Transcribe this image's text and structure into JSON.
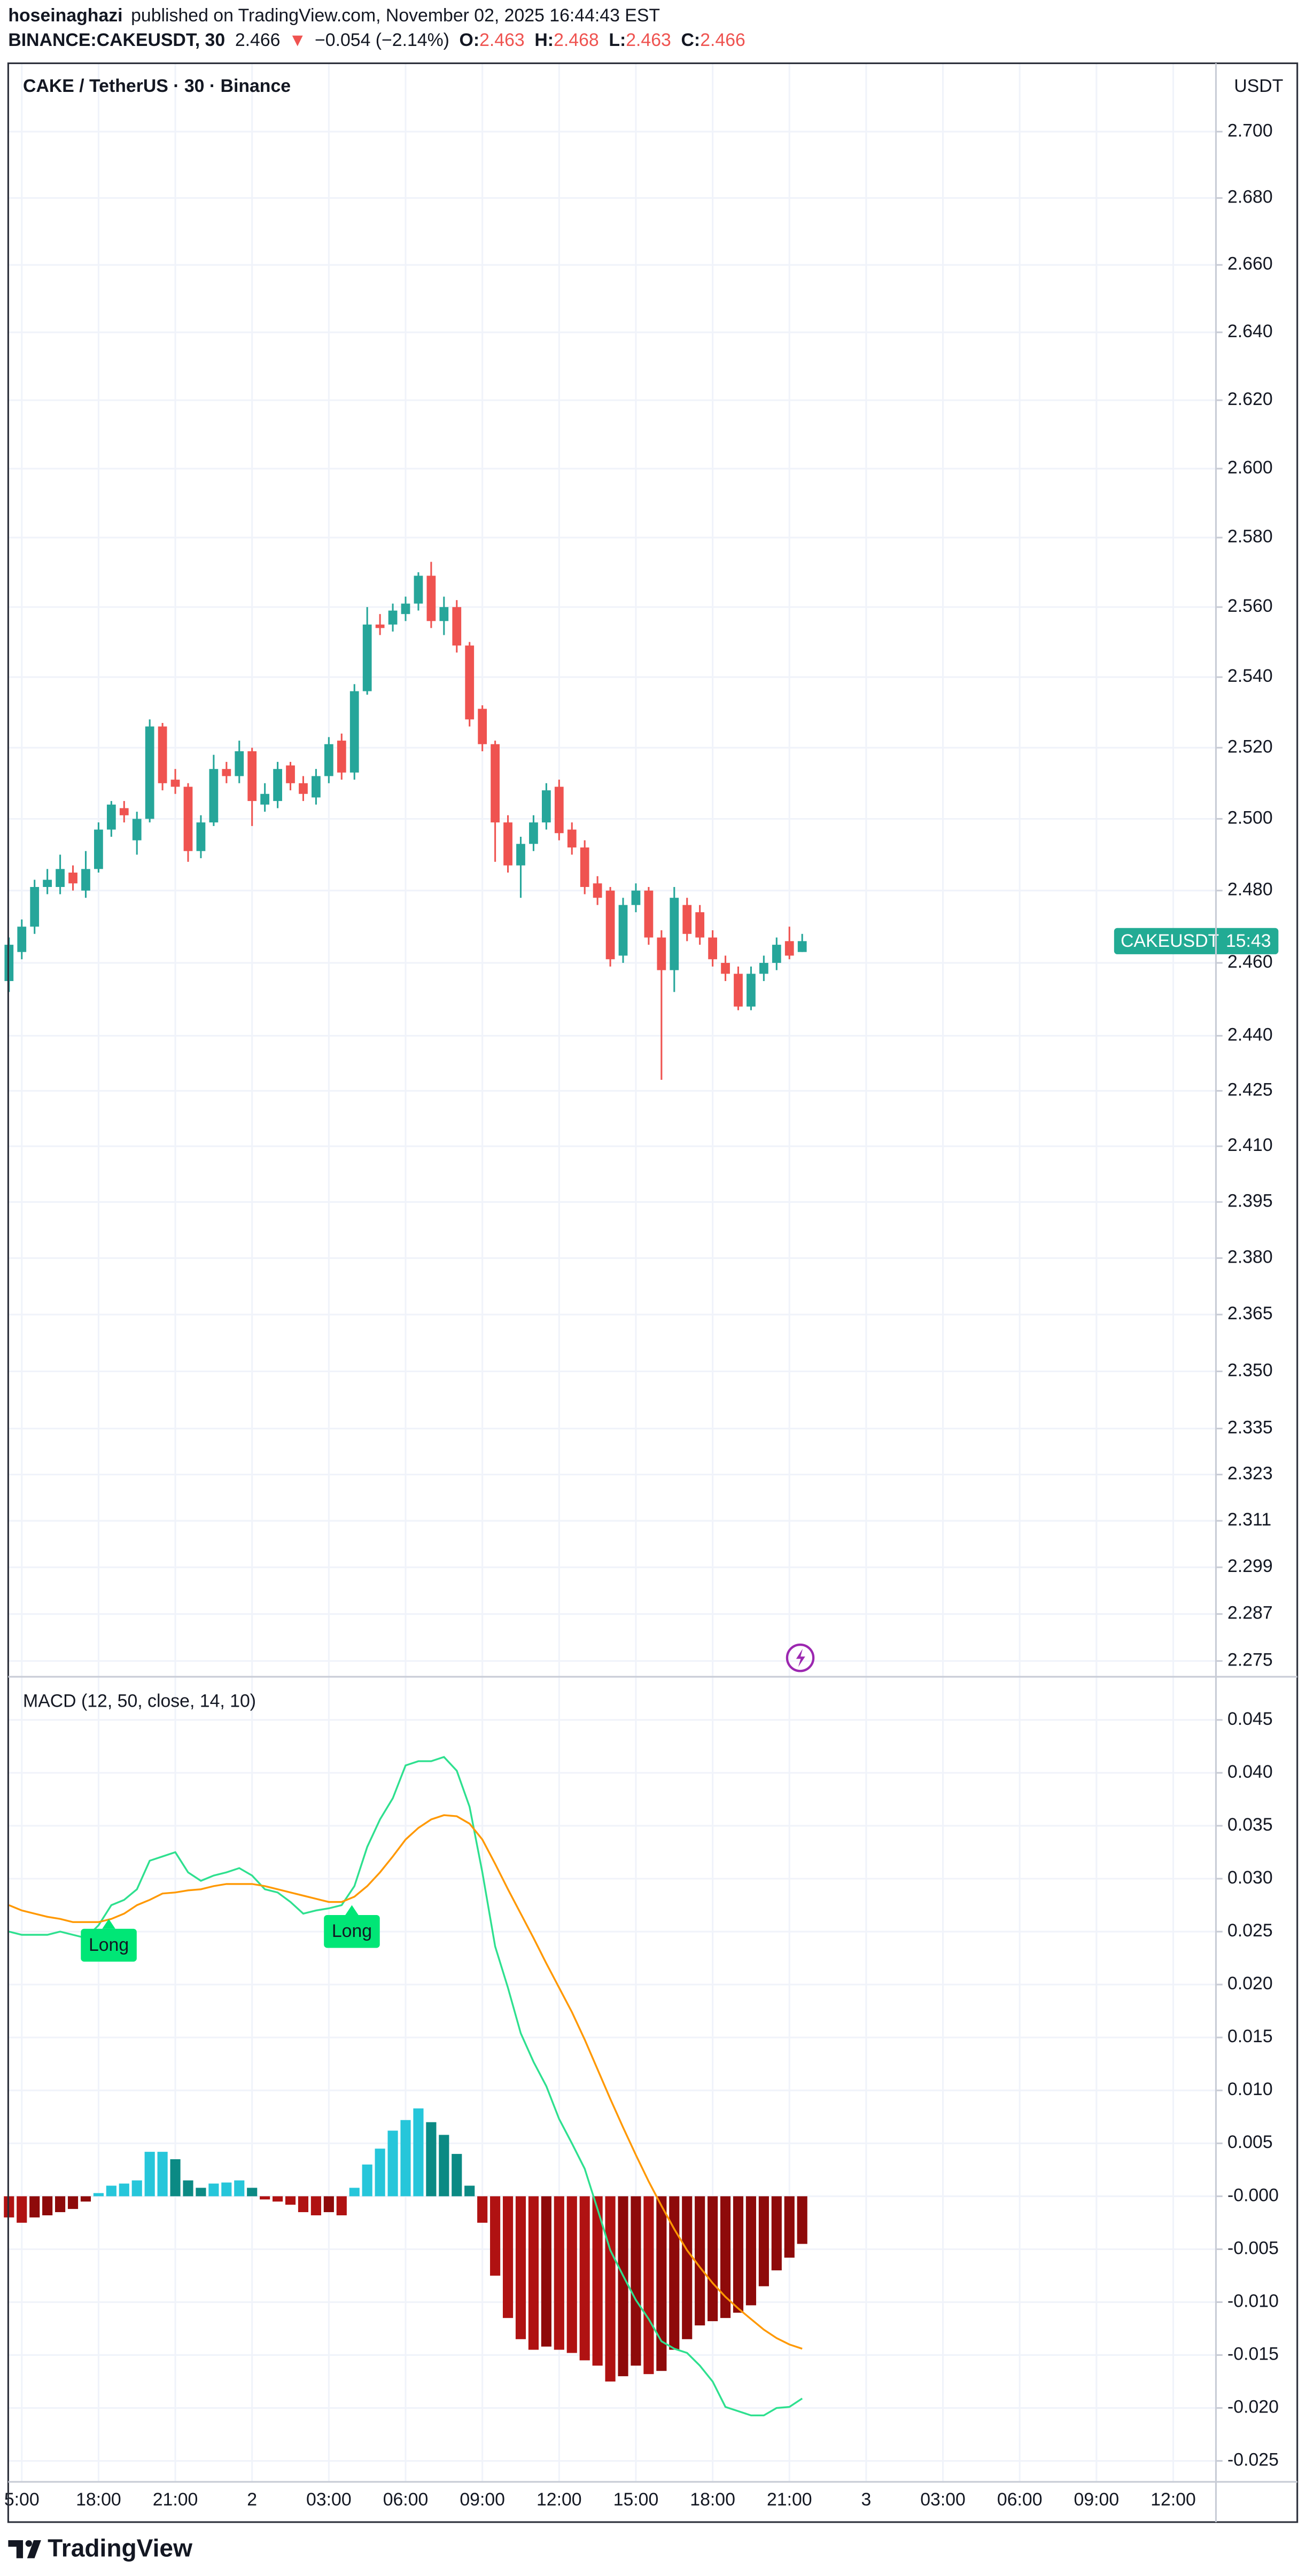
{
  "header": {
    "author": "hoseinaghazi",
    "published": "published on TradingView.com, November 02, 2025 16:44:43 EST",
    "symbol": "BINANCE:CAKEUSDT, 30",
    "last": "2.466",
    "arrow": "▼",
    "change": "−0.054 (−2.14%)",
    "ohlc": [
      {
        "label": "O:",
        "value": "2.463"
      },
      {
        "label": "H:",
        "value": "2.468"
      },
      {
        "label": "L:",
        "value": "2.463"
      },
      {
        "label": "C:",
        "value": "2.466"
      }
    ]
  },
  "footer": {
    "brand": "TradingView"
  },
  "chart_data": [
    {
      "type": "candlestick",
      "title": "CAKE / TetherUS · 30 · Binance",
      "y_unit": "USDT",
      "log_scale": true,
      "grid": true,
      "up_color": "#26a69a",
      "down_color": "#ef5350",
      "xlim": [
        14.47,
        61.67
      ],
      "ylim": [
        2.2712,
        2.72
      ],
      "xticks": [
        {
          "value": 15,
          "label": "5:00"
        },
        {
          "value": 18,
          "label": "18:00"
        },
        {
          "value": 21,
          "label": "21:00"
        },
        {
          "value": 24,
          "label": "2"
        },
        {
          "value": 27,
          "label": "03:00"
        },
        {
          "value": 30,
          "label": "06:00"
        },
        {
          "value": 33,
          "label": "09:00"
        },
        {
          "value": 36,
          "label": "12:00"
        },
        {
          "value": 39,
          "label": "15:00"
        },
        {
          "value": 42,
          "label": "18:00"
        },
        {
          "value": 45,
          "label": "21:00"
        },
        {
          "value": 48,
          "label": "3"
        },
        {
          "value": 51,
          "label": "03:00"
        },
        {
          "value": 54,
          "label": "06:00"
        },
        {
          "value": 57,
          "label": "09:00"
        },
        {
          "value": 60,
          "label": "12:00"
        }
      ],
      "yticks": [
        {
          "value": 2.7,
          "label": "2.700"
        },
        {
          "value": 2.68,
          "label": "2.680"
        },
        {
          "value": 2.66,
          "label": "2.660"
        },
        {
          "value": 2.64,
          "label": "2.640"
        },
        {
          "value": 2.62,
          "label": "2.620"
        },
        {
          "value": 2.6,
          "label": "2.600"
        },
        {
          "value": 2.58,
          "label": "2.580"
        },
        {
          "value": 2.56,
          "label": "2.560"
        },
        {
          "value": 2.54,
          "label": "2.540"
        },
        {
          "value": 2.52,
          "label": "2.520"
        },
        {
          "value": 2.5,
          "label": "2.500"
        },
        {
          "value": 2.48,
          "label": "2.480"
        },
        {
          "value": 2.46,
          "label": "2.460"
        },
        {
          "value": 2.44,
          "label": "2.440"
        },
        2.425,
        {
          "value": 2.41,
          "label": "2.410"
        },
        2.395,
        {
          "value": 2.38,
          "label": "2.380"
        },
        2.365,
        {
          "value": 2.35,
          "label": "2.350"
        },
        2.335,
        2.323,
        2.311,
        2.299,
        2.287,
        2.275
      ],
      "x": [
        14.5,
        15,
        15.5,
        16,
        16.5,
        17,
        17.5,
        18,
        18.5,
        19,
        19.5,
        20,
        20.5,
        21,
        21.5,
        22,
        22.5,
        23,
        23.5,
        24,
        24.5,
        25,
        25.5,
        26,
        26.5,
        27,
        27.5,
        28,
        28.5,
        29,
        29.5,
        30,
        30.5,
        31,
        31.5,
        32,
        32.5,
        33,
        33.5,
        34,
        34.5,
        35,
        35.5,
        36,
        36.5,
        37,
        37.5,
        38,
        38.5,
        39,
        39.5,
        40,
        40.5,
        41,
        41.5,
        42,
        42.5,
        43,
        43.5,
        44,
        44.5,
        45,
        45.5
      ],
      "open": [
        2.455,
        2.463,
        2.47,
        2.481,
        2.481,
        2.485,
        2.48,
        2.486,
        2.497,
        2.503,
        2.494,
        2.5,
        2.526,
        2.511,
        2.509,
        2.491,
        2.499,
        2.514,
        2.512,
        2.519,
        2.504,
        2.505,
        2.515,
        2.51,
        2.506,
        2.512,
        2.522,
        2.513,
        2.536,
        2.555,
        2.555,
        2.558,
        2.561,
        2.569,
        2.556,
        2.56,
        2.549,
        2.531,
        2.521,
        2.499,
        2.487,
        2.493,
        2.499,
        2.509,
        2.497,
        2.492,
        2.482,
        2.48,
        2.462,
        2.476,
        2.48,
        2.467,
        2.458,
        2.476,
        2.474,
        2.467,
        2.46,
        2.457,
        2.448,
        2.457,
        2.46,
        2.466,
        2.463
      ],
      "high": [
        2.467,
        2.472,
        2.483,
        2.486,
        2.49,
        2.487,
        2.491,
        2.499,
        2.505,
        2.505,
        2.502,
        2.528,
        2.527,
        2.514,
        2.51,
        2.501,
        2.518,
        2.516,
        2.522,
        2.52,
        2.51,
        2.516,
        2.516,
        2.512,
        2.514,
        2.523,
        2.524,
        2.538,
        2.56,
        2.558,
        2.561,
        2.563,
        2.57,
        2.573,
        2.563,
        2.562,
        2.55,
        2.532,
        2.522,
        2.501,
        2.495,
        2.501,
        2.51,
        2.511,
        2.499,
        2.494,
        2.484,
        2.481,
        2.478,
        2.482,
        2.481,
        2.469,
        2.481,
        2.478,
        2.476,
        2.469,
        2.462,
        2.459,
        2.459,
        2.462,
        2.467,
        2.47,
        2.468
      ],
      "low": [
        2.452,
        2.461,
        2.468,
        2.479,
        2.479,
        2.48,
        2.478,
        2.485,
        2.495,
        2.499,
        2.49,
        2.499,
        2.508,
        2.507,
        2.488,
        2.489,
        2.498,
        2.51,
        2.51,
        2.498,
        2.502,
        2.503,
        2.508,
        2.505,
        2.504,
        2.51,
        2.511,
        2.511,
        2.535,
        2.552,
        2.553,
        2.556,
        2.559,
        2.554,
        2.552,
        2.547,
        2.526,
        2.519,
        2.488,
        2.485,
        2.478,
        2.491,
        2.497,
        2.494,
        2.49,
        2.479,
        2.476,
        2.459,
        2.46,
        2.474,
        2.465,
        2.428,
        2.452,
        2.466,
        2.465,
        2.459,
        2.455,
        2.447,
        2.447,
        2.455,
        2.458,
        2.461,
        2.463
      ],
      "close": [
        2.465,
        2.47,
        2.481,
        2.483,
        2.486,
        2.482,
        2.486,
        2.497,
        2.504,
        2.501,
        2.5,
        2.526,
        2.51,
        2.509,
        2.491,
        2.499,
        2.514,
        2.512,
        2.519,
        2.505,
        2.507,
        2.514,
        2.51,
        2.507,
        2.512,
        2.521,
        2.513,
        2.536,
        2.555,
        2.554,
        2.559,
        2.561,
        2.569,
        2.556,
        2.56,
        2.549,
        2.528,
        2.521,
        2.499,
        2.487,
        2.493,
        2.499,
        2.508,
        2.496,
        2.492,
        2.481,
        2.478,
        2.461,
        2.476,
        2.48,
        2.467,
        2.458,
        2.478,
        2.468,
        2.467,
        2.461,
        2.457,
        2.448,
        2.457,
        2.46,
        2.465,
        2.462,
        2.466
      ],
      "price_label": {
        "symbol": "CAKEUSDT",
        "countdown": "15:43",
        "color": "#22ab94"
      }
    },
    {
      "type": "macd",
      "title": "MACD (12, 50, close, 14, 10)",
      "grid": true,
      "ylim": [
        -0.0269,
        0.049
      ],
      "yticks": [
        0.045,
        {
          "value": 0.04,
          "label": "0.040"
        },
        0.035,
        {
          "value": 0.03,
          "label": "0.030"
        },
        0.025,
        {
          "value": 0.02,
          "label": "0.020"
        },
        0.015,
        {
          "value": 0.01,
          "label": "0.010"
        },
        0.005,
        {
          "value": 0,
          "label": "-0.000"
        },
        -0.005,
        {
          "value": -0.01,
          "label": "-0.010"
        },
        -0.015,
        {
          "value": -0.02,
          "label": "-0.020"
        },
        -0.025
      ],
      "histogram": {
        "colors": {
          "rising_above": "#26c6da",
          "falling_above": "#0b8a84",
          "falling_below": "#b01212",
          "rising_below": "#8e0a0a"
        },
        "values": [
          -0.002,
          -0.0025,
          -0.002,
          -0.0018,
          -0.0015,
          -0.0012,
          -0.0005,
          0.0003,
          0.001,
          0.0012,
          0.0015,
          0.0042,
          0.0042,
          0.0035,
          0.0015,
          0.0008,
          0.0012,
          0.0013,
          0.0015,
          0.0008,
          -0.0003,
          -0.0005,
          -0.0008,
          -0.0015,
          -0.0018,
          -0.0015,
          -0.0018,
          0.0008,
          0.003,
          0.0045,
          0.0062,
          0.0072,
          0.0083,
          0.007,
          0.0058,
          0.004,
          0.001,
          -0.0025,
          -0.0075,
          -0.0115,
          -0.0135,
          -0.0145,
          -0.0142,
          -0.0145,
          -0.0148,
          -0.0155,
          -0.016,
          -0.0175,
          -0.017,
          -0.016,
          -0.0168,
          -0.0165,
          -0.0145,
          -0.0135,
          -0.0122,
          -0.0118,
          -0.0115,
          -0.011,
          -0.0103,
          -0.0085,
          -0.007,
          -0.0058,
          -0.0045
        ]
      },
      "series": [
        {
          "color": "#2ee08f",
          "values": [
            0.025,
            0.0247,
            0.0247,
            0.0247,
            0.025,
            0.0247,
            0.0244,
            0.0256,
            0.0275,
            0.028,
            0.029,
            0.0317,
            0.0321,
            0.0325,
            0.0306,
            0.0298,
            0.0303,
            0.0306,
            0.031,
            0.0303,
            0.029,
            0.0287,
            0.0278,
            0.0267,
            0.027,
            0.0272,
            0.0275,
            0.0293,
            0.033,
            0.0356,
            0.0376,
            0.0407,
            0.0411,
            0.0411,
            0.0415,
            0.0402,
            0.0368,
            0.0306,
            0.0236,
            0.0197,
            0.0154,
            0.0127,
            0.0104,
            0.0073,
            0.005,
            0.0026,
            -0.0012,
            -0.0051,
            -0.0075,
            -0.0098,
            -0.0116,
            -0.0137,
            -0.0144,
            -0.0148,
            -0.016,
            -0.0175,
            -0.0199,
            -0.0203,
            -0.0207,
            -0.0207,
            -0.02,
            -0.0199,
            -0.0191
          ]
        },
        {
          "color": "#ff9800",
          "values": [
            0.0275,
            0.027,
            0.0267,
            0.0264,
            0.0262,
            0.0259,
            0.0259,
            0.0259,
            0.0262,
            0.0267,
            0.0275,
            0.028,
            0.0286,
            0.0287,
            0.0289,
            0.029,
            0.0293,
            0.0295,
            0.0295,
            0.0295,
            0.0293,
            0.029,
            0.0287,
            0.0284,
            0.0281,
            0.0278,
            0.0278,
            0.0283,
            0.0293,
            0.0306,
            0.0321,
            0.0337,
            0.0348,
            0.0356,
            0.036,
            0.0359,
            0.0352,
            0.0337,
            0.0314,
            0.029,
            0.0267,
            0.0244,
            0.022,
            0.0197,
            0.0174,
            0.0148,
            0.012,
            0.0092,
            0.0065,
            0.0039,
            0.0014,
            -0.0009,
            -0.0031,
            -0.0051,
            -0.0067,
            -0.0082,
            -0.0095,
            -0.0106,
            -0.0116,
            -0.0126,
            -0.0134,
            -0.014,
            -0.0144
          ]
        }
      ],
      "annotations": [
        {
          "text": "Long",
          "x": 18.4,
          "y": 0.0262,
          "color": "#00e676"
        },
        {
          "text": "Long",
          "x": 27.9,
          "y": 0.0275,
          "color": "#00e676"
        }
      ]
    }
  ]
}
